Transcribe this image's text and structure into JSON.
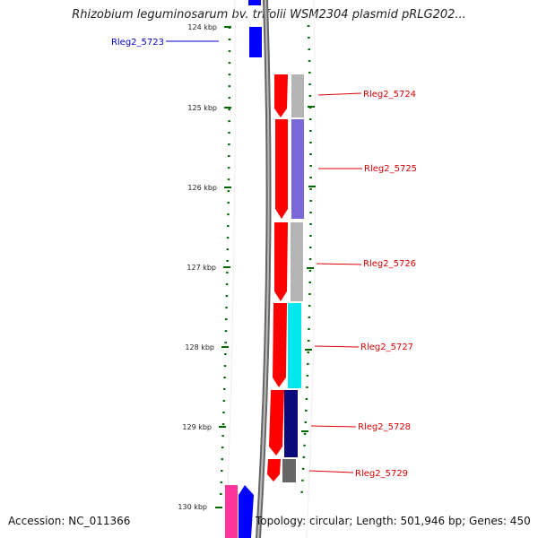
{
  "title": "Rhizobium leguminosarum bv. trifolii WSM2304 plasmid pRLG202...",
  "footer": {
    "accession": "Accession: NC_011366",
    "summary": "Topology: circular; Length: 501,946 bp; Genes: 450"
  },
  "ticks": [
    "124 kbp",
    "125 kbp",
    "126 kbp",
    "127 kbp",
    "128 kbp",
    "129 kbp",
    "130 kbp"
  ],
  "genes": [
    {
      "name": "Rleg2_5723",
      "color": "#0000cc"
    },
    {
      "name": "Rleg2_5724",
      "color": "#dd0000"
    },
    {
      "name": "Rleg2_5725",
      "color": "#dd0000"
    },
    {
      "name": "Rleg2_5726",
      "color": "#dd0000"
    },
    {
      "name": "Rleg2_5727",
      "color": "#dd0000"
    },
    {
      "name": "Rleg2_5728",
      "color": "#dd0000"
    },
    {
      "name": "Rleg2_5729",
      "color": "#dd0000"
    }
  ],
  "colors": {
    "forward_strand": "#ff0000",
    "reverse_strand": "#0000ff",
    "tick_mark": "#006600",
    "backbone": "#888888",
    "cog_grey": "#b4b4b4",
    "cog_purple": "#7b68d8",
    "cog_cyan": "#00e8ee",
    "cog_navy": "#0a0a7a",
    "cog_dark_grey": "#666666",
    "magenta": "#ff3399"
  }
}
